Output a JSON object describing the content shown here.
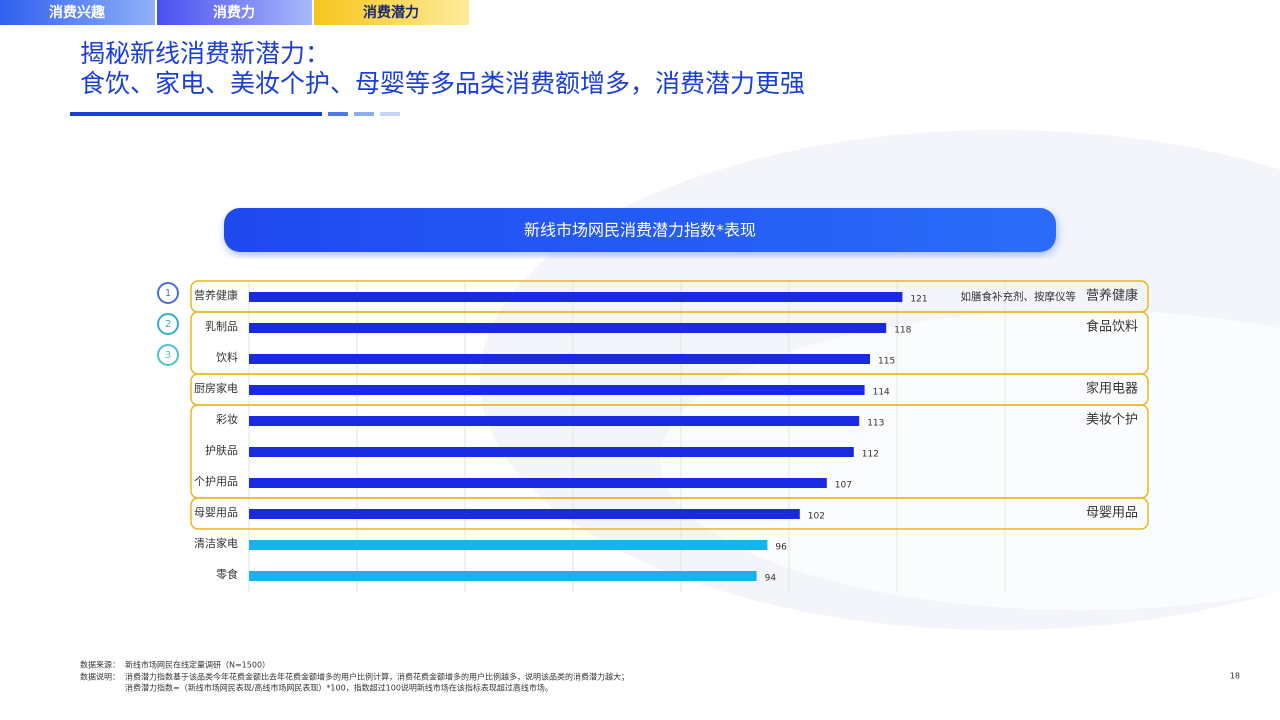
{
  "tabs": [
    "消费兴趣",
    "消费力",
    "消费潜力"
  ],
  "header": {
    "title_lines": [
      "揭秘新线消费新潜力：",
      "食饮、家电、美妆个护、母婴等多品类消费额增多，消费潜力更强"
    ]
  },
  "chart_data": {
    "type": "hbar",
    "title": "新线市场网民消费潜力指数*表现",
    "categories": [
      "营养健康",
      "乳制品",
      "饮料",
      "厨房家电",
      "彩妆",
      "护肤品",
      "个护用品",
      "母婴用品",
      "清洁家电",
      "零食"
    ],
    "values": [
      121,
      118,
      115,
      114,
      113,
      112,
      107,
      102,
      96,
      94
    ],
    "colors": [
      "#1a2ae0",
      "#1a2ae0",
      "#1a2ae0",
      "#1a2ae0",
      "#1a2ae0",
      "#1a2ae0",
      "#1a2ae0",
      "#1a2ae0",
      "#1ab2ee",
      "#1ab2ee"
    ],
    "xlim": [
      0,
      140
    ],
    "xticks": [
      0,
      20,
      40,
      60,
      80,
      100,
      120,
      140
    ],
    "grid": true,
    "rank_badges": [
      "1",
      "2",
      "3"
    ],
    "annotation": "如膳食补充剂、按摩仪等",
    "groups": [
      {
        "label": "营养健康",
        "size": 1
      },
      {
        "label": "食品饮料",
        "size": 2
      },
      {
        "label": "家用电器",
        "size": 1
      },
      {
        "label": "美妆个护",
        "size": 3
      },
      {
        "label": "母婴用品",
        "size": 1
      }
    ],
    "group_color": "#e8b820"
  },
  "notes": {
    "source_label": "数据来源：",
    "source": "新线市场网民在线定量调研（N=1500）",
    "explanation_label": "数据说明：",
    "explanation": [
      "消费潜力指数基于该品类今年花费金额比去年花费金额增多的用户比例计算，消费花费金额增多的用户比例越多，说明该品类的消费潜力越大；",
      "消费潜力指数=（新线市场网民表现/高线市场网民表现）*100，指数超过100说明新线市场在该指标表现超过高线市场。"
    ]
  },
  "page_number": "18"
}
